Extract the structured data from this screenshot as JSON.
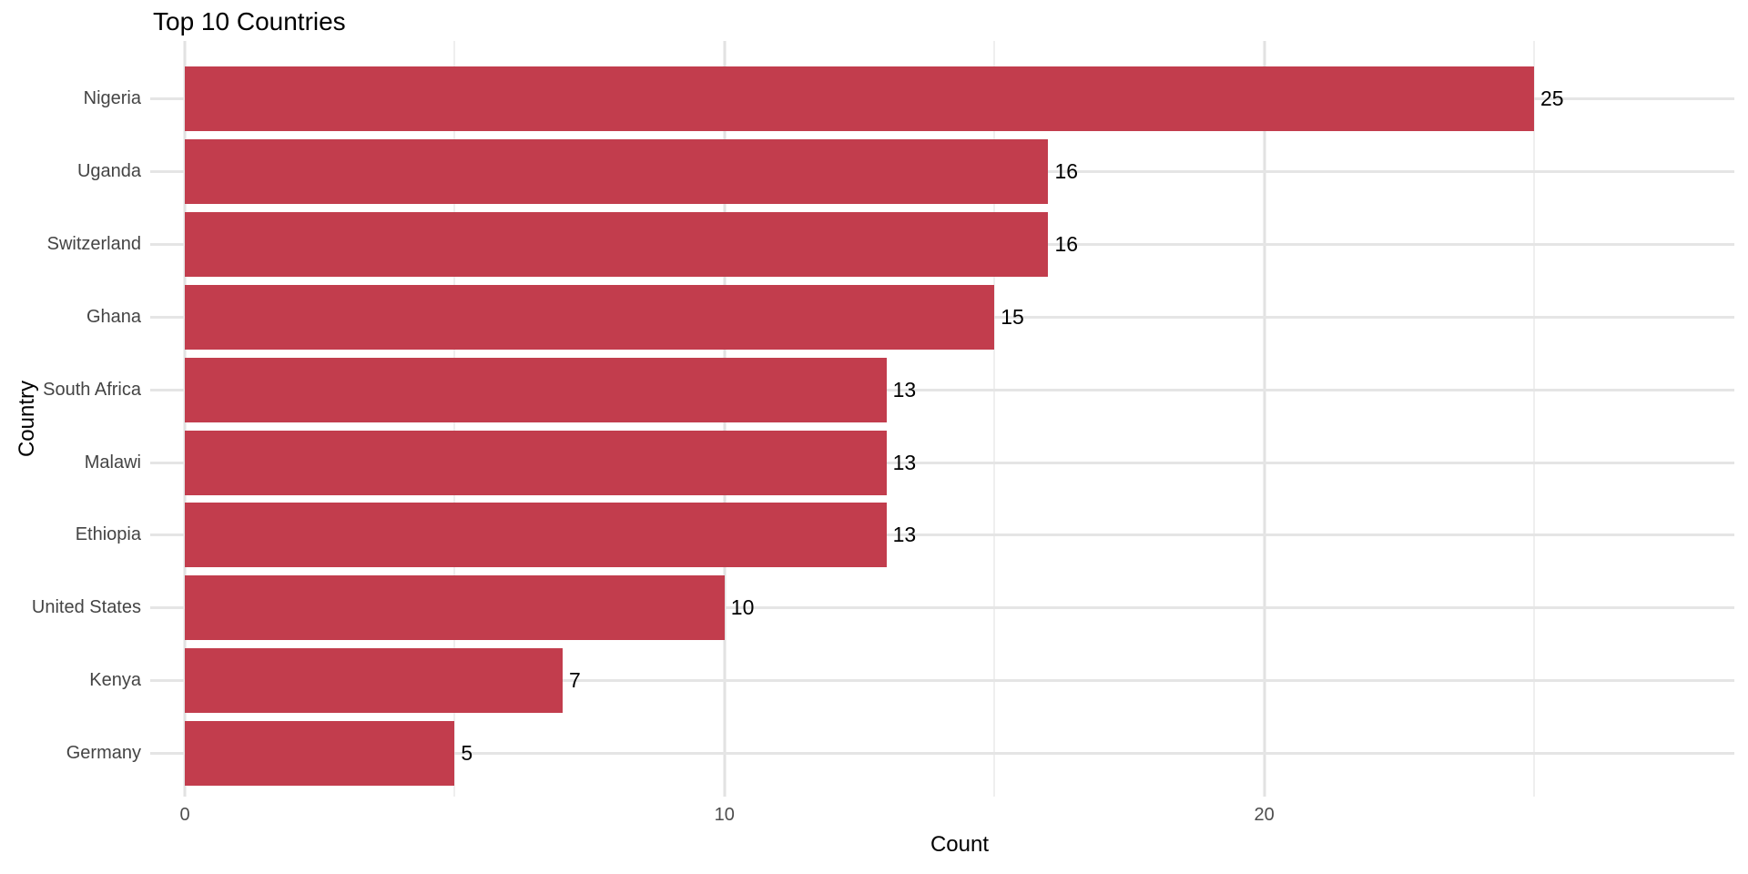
{
  "chart": {
    "title": "Top 10 Countries",
    "x_axis_title": "Count",
    "y_axis_title": "Country"
  },
  "chart_data": {
    "type": "bar",
    "orientation": "horizontal",
    "title": "Top 10 Countries",
    "xlabel": "Count",
    "ylabel": "Country",
    "categories": [
      "Nigeria",
      "Uganda",
      "Switzerland",
      "Ghana",
      "South Africa",
      "Malawi",
      "Ethiopia",
      "United States",
      "Kenya",
      "Germany"
    ],
    "values": [
      25,
      16,
      16,
      15,
      13,
      13,
      13,
      10,
      7,
      5
    ],
    "value_labels": [
      "25",
      "16",
      "16",
      "15",
      "13",
      "13",
      "13",
      "10",
      "7",
      "5"
    ],
    "x_major_ticks": [
      0,
      10,
      20
    ],
    "x_minor_ticks": [
      5,
      15,
      25
    ],
    "xlim": [
      0,
      28.7
    ],
    "grid": "major-and-minor",
    "legend_position": "none",
    "bar_color": "#C23D4D",
    "background_color": "#FFFFFF",
    "grid_major_color": "#E2E2E2",
    "grid_minor_color": "#EFEFEF",
    "tick_label_color": "#4D4D4D",
    "category_label_color": "#444444"
  }
}
